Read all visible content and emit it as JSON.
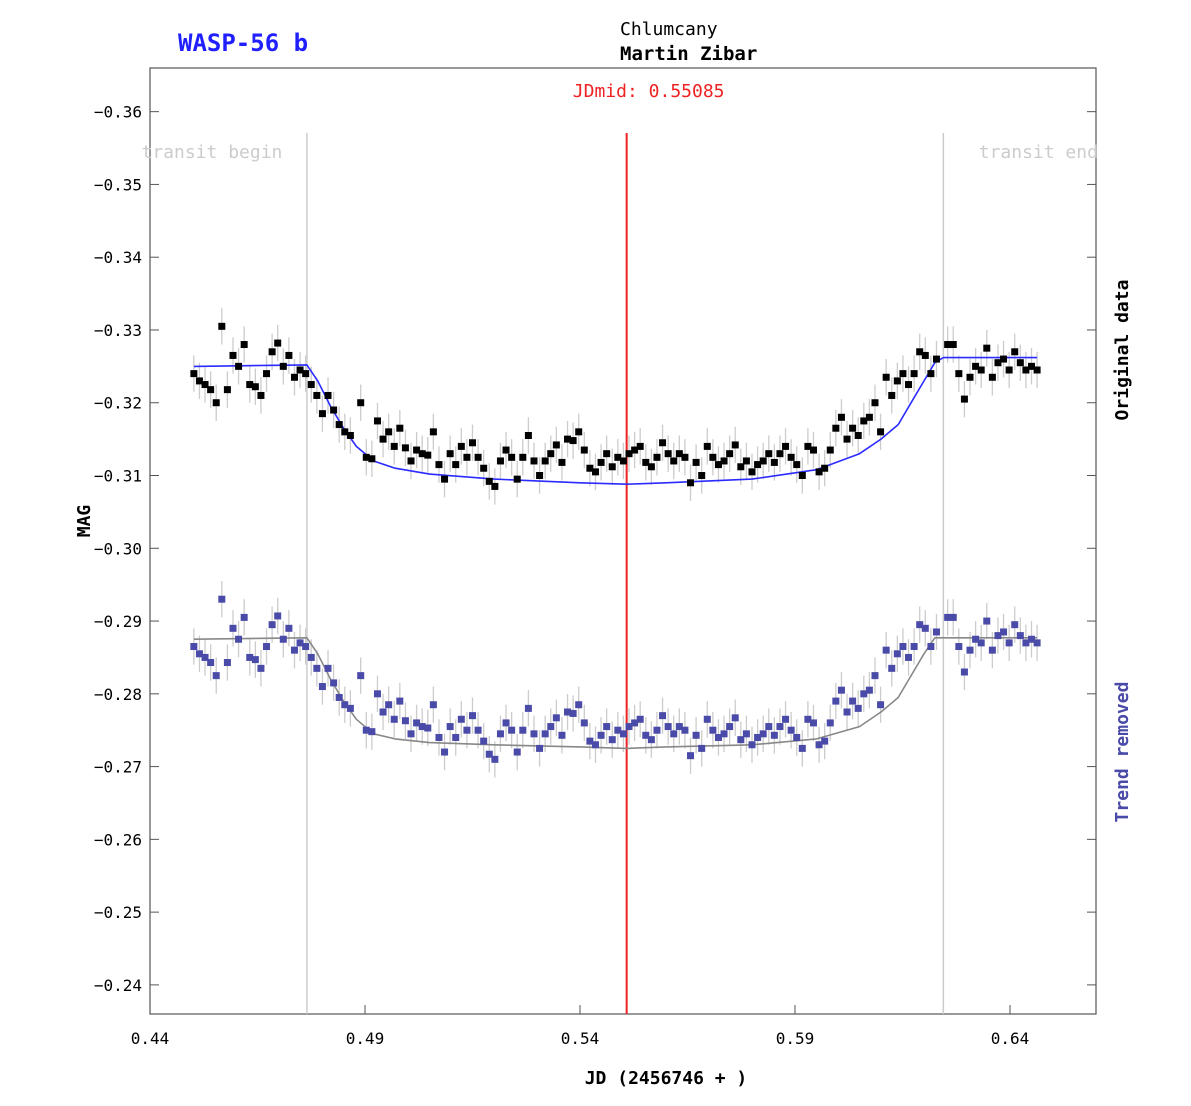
{
  "header": {
    "target": "WASP-56 b",
    "location": "Chlumcany",
    "observer": "Martin Zibar"
  },
  "colors": {
    "target": "#1f1fff",
    "jdmid": "#ee2222",
    "original_points": "#000000",
    "original_model": "#2b2bff",
    "detrended_points": "#4a4aa8",
    "detrended_model": "#888888",
    "detrended_label": "#4a4aa8",
    "error_bars": "#cccccc",
    "transit_lines": "#cccccc",
    "transit_text": "#cccccc"
  },
  "chart_data": {
    "type": "scatter",
    "title": "",
    "xlabel": "JD (2456746 + )",
    "ylabel": "MAG",
    "xlim": [
      0.44,
      0.66
    ],
    "ylim": [
      -0.366,
      -0.236
    ],
    "x_ticks": [
      0.44,
      0.49,
      0.54,
      0.59,
      0.64
    ],
    "x_tick_labels": [
      "0.44",
      "0.49",
      "0.54",
      "0.59",
      "0.64"
    ],
    "y_ticks": [
      -0.36,
      -0.35,
      -0.34,
      -0.33,
      -0.32,
      -0.31,
      -0.3,
      -0.29,
      -0.28,
      -0.27,
      -0.26,
      -0.25,
      -0.24
    ],
    "y_tick_labels": [
      "−0.36",
      "−0.35",
      "−0.34",
      "−0.33",
      "−0.32",
      "−0.31",
      "−0.30",
      "−0.29",
      "−0.28",
      "−0.27",
      "−0.26",
      "−0.25",
      "−0.24"
    ],
    "grid": false,
    "vertical_markers": {
      "transit_begin": {
        "x": 0.4765,
        "label": "transit begin"
      },
      "jd_mid": {
        "x": 0.55085,
        "label": "JDmid: 0.55085"
      },
      "transit_end": {
        "x": 0.6245,
        "label": "transit end"
      }
    },
    "right_labels": {
      "original": "Original data",
      "detrended": "Trend removed"
    },
    "error_bar": 0.0025,
    "series": [
      {
        "name": "Original data",
        "x": [
          0.4502,
          0.4515,
          0.4528,
          0.4541,
          0.4554,
          0.4567,
          0.458,
          0.4593,
          0.4606,
          0.4619,
          0.4632,
          0.4645,
          0.4658,
          0.4671,
          0.4684,
          0.4697,
          0.471,
          0.4723,
          0.4736,
          0.4749,
          0.4762,
          0.4775,
          0.4788,
          0.4801,
          0.4814,
          0.4827,
          0.484,
          0.4853,
          0.4866,
          0.489,
          0.4903,
          0.4916,
          0.4929,
          0.4942,
          0.4955,
          0.4968,
          0.4981,
          0.4994,
          0.5007,
          0.502,
          0.5033,
          0.5046,
          0.5059,
          0.5072,
          0.5085,
          0.5098,
          0.5111,
          0.5124,
          0.5137,
          0.515,
          0.5163,
          0.5176,
          0.5189,
          0.5202,
          0.5215,
          0.5228,
          0.5241,
          0.5254,
          0.5267,
          0.528,
          0.5293,
          0.5306,
          0.5319,
          0.5332,
          0.5345,
          0.5358,
          0.5371,
          0.5384,
          0.5397,
          0.541,
          0.5423,
          0.5436,
          0.5449,
          0.5462,
          0.5475,
          0.5488,
          0.5501,
          0.5514,
          0.5527,
          0.554,
          0.5553,
          0.5566,
          0.5579,
          0.5592,
          0.5605,
          0.5618,
          0.5631,
          0.5644,
          0.5657,
          0.567,
          0.5683,
          0.5696,
          0.5709,
          0.5722,
          0.5735,
          0.5748,
          0.5761,
          0.5774,
          0.5787,
          0.58,
          0.5813,
          0.5826,
          0.5839,
          0.5852,
          0.5865,
          0.5878,
          0.5891,
          0.5904,
          0.5917,
          0.593,
          0.5943,
          0.5956,
          0.5969,
          0.5982,
          0.5995,
          0.6008,
          0.6021,
          0.6034,
          0.6047,
          0.606,
          0.6073,
          0.6086,
          0.6099,
          0.6112,
          0.6125,
          0.6138,
          0.6151,
          0.6164,
          0.6177,
          0.619,
          0.6203,
          0.6216,
          0.6229,
          0.6255,
          0.6268,
          0.6281,
          0.6294,
          0.6307,
          0.632,
          0.6333,
          0.6346,
          0.6359,
          0.6372,
          0.6385,
          0.6398,
          0.6411,
          0.6424,
          0.6437,
          0.645,
          0.6463
        ],
        "y": [
          -0.324,
          -0.323,
          -0.3225,
          -0.3218,
          -0.32,
          -0.3305,
          -0.3218,
          -0.3265,
          -0.325,
          -0.328,
          -0.3225,
          -0.3222,
          -0.321,
          -0.324,
          -0.327,
          -0.3282,
          -0.325,
          -0.3265,
          -0.3235,
          -0.3245,
          -0.324,
          -0.3225,
          -0.321,
          -0.3185,
          -0.321,
          -0.319,
          -0.317,
          -0.316,
          -0.3155,
          -0.32,
          -0.3125,
          -0.3123,
          -0.3175,
          -0.315,
          -0.316,
          -0.314,
          -0.3165,
          -0.3138,
          -0.312,
          -0.3135,
          -0.313,
          -0.3128,
          -0.316,
          -0.3115,
          -0.3095,
          -0.313,
          -0.3115,
          -0.314,
          -0.3125,
          -0.3145,
          -0.3125,
          -0.311,
          -0.3092,
          -0.3085,
          -0.312,
          -0.3135,
          -0.3125,
          -0.3095,
          -0.3125,
          -0.3155,
          -0.312,
          -0.31,
          -0.312,
          -0.313,
          -0.3142,
          -0.3118,
          -0.315,
          -0.3148,
          -0.316,
          -0.3135,
          -0.311,
          -0.3105,
          -0.3118,
          -0.313,
          -0.3112,
          -0.3125,
          -0.312,
          -0.313,
          -0.3135,
          -0.314,
          -0.3118,
          -0.3112,
          -0.3125,
          -0.3145,
          -0.313,
          -0.312,
          -0.313,
          -0.3125,
          -0.309,
          -0.3118,
          -0.31,
          -0.314,
          -0.3125,
          -0.3115,
          -0.312,
          -0.313,
          -0.3142,
          -0.3112,
          -0.312,
          -0.3105,
          -0.3115,
          -0.312,
          -0.313,
          -0.3118,
          -0.313,
          -0.314,
          -0.3125,
          -0.3115,
          -0.31,
          -0.314,
          -0.3135,
          -0.3105,
          -0.311,
          -0.3135,
          -0.3165,
          -0.318,
          -0.315,
          -0.3165,
          -0.3155,
          -0.3175,
          -0.318,
          -0.32,
          -0.316,
          -0.3235,
          -0.321,
          -0.323,
          -0.324,
          -0.3225,
          -0.324,
          -0.327,
          -0.3265,
          -0.324,
          -0.326,
          -0.328,
          -0.328,
          -0.324,
          -0.3205,
          -0.3235,
          -0.325,
          -0.3245,
          -0.3275,
          -0.3235,
          -0.3255,
          -0.326,
          -0.3245,
          -0.327,
          -0.3255,
          -0.3245,
          -0.325,
          -0.3245
        ]
      },
      {
        "name": "Trend removed",
        "x": [
          0.4502,
          0.4515,
          0.4528,
          0.4541,
          0.4554,
          0.4567,
          0.458,
          0.4593,
          0.4606,
          0.4619,
          0.4632,
          0.4645,
          0.4658,
          0.4671,
          0.4684,
          0.4697,
          0.471,
          0.4723,
          0.4736,
          0.4749,
          0.4762,
          0.4775,
          0.4788,
          0.4801,
          0.4814,
          0.4827,
          0.484,
          0.4853,
          0.4866,
          0.489,
          0.4903,
          0.4916,
          0.4929,
          0.4942,
          0.4955,
          0.4968,
          0.4981,
          0.4994,
          0.5007,
          0.502,
          0.5033,
          0.5046,
          0.5059,
          0.5072,
          0.5085,
          0.5098,
          0.5111,
          0.5124,
          0.5137,
          0.515,
          0.5163,
          0.5176,
          0.5189,
          0.5202,
          0.5215,
          0.5228,
          0.5241,
          0.5254,
          0.5267,
          0.528,
          0.5293,
          0.5306,
          0.5319,
          0.5332,
          0.5345,
          0.5358,
          0.5371,
          0.5384,
          0.5397,
          0.541,
          0.5423,
          0.5436,
          0.5449,
          0.5462,
          0.5475,
          0.5488,
          0.5501,
          0.5514,
          0.5527,
          0.554,
          0.5553,
          0.5566,
          0.5579,
          0.5592,
          0.5605,
          0.5618,
          0.5631,
          0.5644,
          0.5657,
          0.567,
          0.5683,
          0.5696,
          0.5709,
          0.5722,
          0.5735,
          0.5748,
          0.5761,
          0.5774,
          0.5787,
          0.58,
          0.5813,
          0.5826,
          0.5839,
          0.5852,
          0.5865,
          0.5878,
          0.5891,
          0.5904,
          0.5917,
          0.593,
          0.5943,
          0.5956,
          0.5969,
          0.5982,
          0.5995,
          0.6008,
          0.6021,
          0.6034,
          0.6047,
          0.606,
          0.6073,
          0.6086,
          0.6099,
          0.6112,
          0.6125,
          0.6138,
          0.6151,
          0.6164,
          0.6177,
          0.619,
          0.6203,
          0.6216,
          0.6229,
          0.6255,
          0.6268,
          0.6281,
          0.6294,
          0.6307,
          0.632,
          0.6333,
          0.6346,
          0.6359,
          0.6372,
          0.6385,
          0.6398,
          0.6411,
          0.6424,
          0.6437,
          0.645,
          0.6463
        ],
        "y": [
          -0.2865,
          -0.2855,
          -0.285,
          -0.2843,
          -0.2825,
          -0.293,
          -0.2843,
          -0.289,
          -0.2875,
          -0.2905,
          -0.285,
          -0.2847,
          -0.2835,
          -0.2865,
          -0.2895,
          -0.2907,
          -0.2875,
          -0.289,
          -0.286,
          -0.287,
          -0.2865,
          -0.285,
          -0.2835,
          -0.281,
          -0.2835,
          -0.2815,
          -0.2795,
          -0.2785,
          -0.278,
          -0.2825,
          -0.275,
          -0.2748,
          -0.28,
          -0.2775,
          -0.2785,
          -0.2765,
          -0.279,
          -0.2763,
          -0.2745,
          -0.276,
          -0.2755,
          -0.2753,
          -0.2785,
          -0.274,
          -0.272,
          -0.2755,
          -0.274,
          -0.2765,
          -0.275,
          -0.277,
          -0.275,
          -0.2735,
          -0.2717,
          -0.271,
          -0.2745,
          -0.276,
          -0.275,
          -0.272,
          -0.275,
          -0.278,
          -0.2745,
          -0.2725,
          -0.2745,
          -0.2755,
          -0.2767,
          -0.2743,
          -0.2775,
          -0.2773,
          -0.2785,
          -0.276,
          -0.2735,
          -0.273,
          -0.2743,
          -0.2755,
          -0.2737,
          -0.275,
          -0.2745,
          -0.2755,
          -0.276,
          -0.2765,
          -0.2743,
          -0.2737,
          -0.275,
          -0.277,
          -0.2755,
          -0.2745,
          -0.2755,
          -0.275,
          -0.2715,
          -0.2743,
          -0.2725,
          -0.2765,
          -0.275,
          -0.274,
          -0.2745,
          -0.2755,
          -0.2767,
          -0.2737,
          -0.2745,
          -0.273,
          -0.274,
          -0.2745,
          -0.2755,
          -0.2743,
          -0.2755,
          -0.2765,
          -0.275,
          -0.274,
          -0.2725,
          -0.2765,
          -0.276,
          -0.273,
          -0.2735,
          -0.276,
          -0.279,
          -0.2805,
          -0.2775,
          -0.279,
          -0.278,
          -0.28,
          -0.2805,
          -0.2825,
          -0.2785,
          -0.286,
          -0.2835,
          -0.2855,
          -0.2865,
          -0.285,
          -0.2865,
          -0.2895,
          -0.289,
          -0.2865,
          -0.2885,
          -0.2905,
          -0.2905,
          -0.2865,
          -0.283,
          -0.286,
          -0.2875,
          -0.287,
          -0.29,
          -0.286,
          -0.288,
          -0.2885,
          -0.287,
          -0.2895,
          -0.288,
          -0.287,
          -0.2875,
          -0.287
        ]
      }
    ],
    "models": [
      {
        "name": "Original model",
        "x": [
          0.4502,
          0.4765,
          0.479,
          0.482,
          0.485,
          0.488,
          0.492,
          0.497,
          0.505,
          0.52,
          0.54,
          0.5509,
          0.56,
          0.58,
          0.595,
          0.605,
          0.61,
          0.614,
          0.617,
          0.62,
          0.6225,
          0.6245,
          0.63,
          0.6463
        ],
        "y": [
          -0.325,
          -0.3252,
          -0.323,
          -0.3195,
          -0.3165,
          -0.314,
          -0.312,
          -0.311,
          -0.3102,
          -0.3095,
          -0.309,
          -0.3088,
          -0.309,
          -0.3095,
          -0.3108,
          -0.313,
          -0.315,
          -0.317,
          -0.32,
          -0.323,
          -0.3255,
          -0.3262,
          -0.3262,
          -0.3262
        ]
      },
      {
        "name": "Trend removed model",
        "x": [
          0.4502,
          0.4765,
          0.479,
          0.482,
          0.485,
          0.488,
          0.492,
          0.497,
          0.505,
          0.52,
          0.54,
          0.5509,
          0.56,
          0.58,
          0.595,
          0.605,
          0.61,
          0.614,
          0.617,
          0.62,
          0.6225,
          0.6245,
          0.63,
          0.6463
        ],
        "y": [
          -0.2875,
          -0.2877,
          -0.2855,
          -0.282,
          -0.279,
          -0.2765,
          -0.2745,
          -0.2738,
          -0.2733,
          -0.273,
          -0.2727,
          -0.2725,
          -0.2727,
          -0.273,
          -0.2738,
          -0.2755,
          -0.2775,
          -0.2795,
          -0.2825,
          -0.2855,
          -0.2877,
          -0.2877,
          -0.2877,
          -0.2877
        ]
      }
    ]
  }
}
